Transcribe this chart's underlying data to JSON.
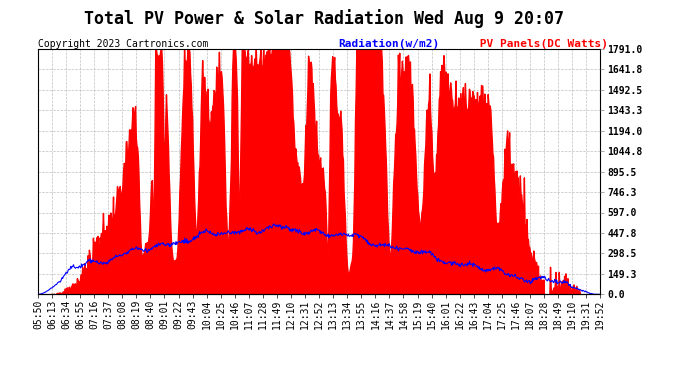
{
  "title": "Total PV Power & Solar Radiation Wed Aug 9 20:07",
  "copyright": "Copyright 2023 Cartronics.com",
  "legend_radiation": "Radiation(w/m2)",
  "legend_pv": " PV Panels(DC Watts)",
  "background_color": "#ffffff",
  "grid_color": "#b0b0b0",
  "pv_fill_color": "#ff0000",
  "radiation_line_color": "#0000ff",
  "ytick_labels": [
    "0.0",
    "149.3",
    "298.5",
    "447.8",
    "597.0",
    "746.3",
    "895.5",
    "1044.8",
    "1194.0",
    "1343.3",
    "1492.5",
    "1641.8",
    "1791.0"
  ],
  "ymax": 1791.0,
  "ymin": 0.0,
  "x_labels": [
    "05:50",
    "06:13",
    "06:34",
    "06:55",
    "07:16",
    "07:37",
    "08:08",
    "08:19",
    "08:40",
    "09:01",
    "09:22",
    "09:43",
    "10:04",
    "10:25",
    "10:46",
    "11:07",
    "11:28",
    "11:49",
    "12:10",
    "12:31",
    "12:52",
    "13:13",
    "13:34",
    "13:55",
    "14:16",
    "14:37",
    "14:58",
    "15:19",
    "15:40",
    "16:01",
    "16:22",
    "16:43",
    "17:04",
    "17:25",
    "17:46",
    "18:07",
    "18:28",
    "18:49",
    "19:10",
    "19:31",
    "19:52"
  ],
  "title_fontsize": 12,
  "copyright_fontsize": 7,
  "tick_fontsize": 7,
  "legend_fontsize": 8
}
